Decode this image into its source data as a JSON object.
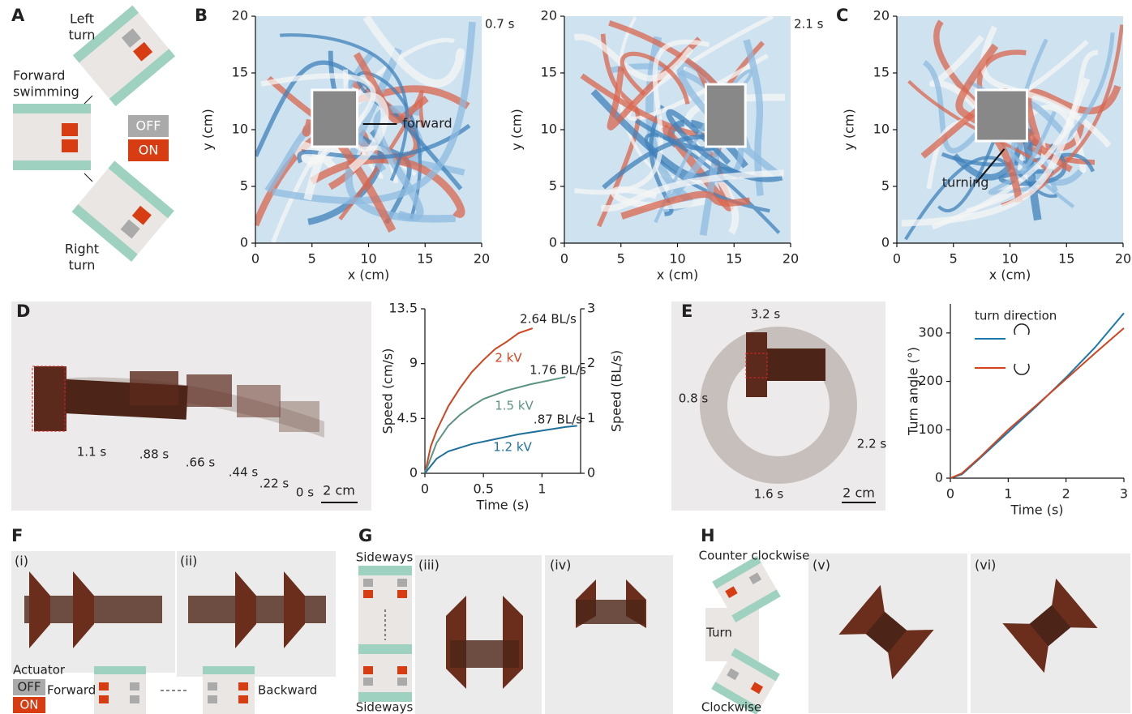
{
  "panels": {
    "A": {
      "letter": "A",
      "left_turn": [
        "Left",
        "turn"
      ],
      "forward_swimming": [
        "Forward",
        "swimming"
      ],
      "right_turn": [
        "Right",
        "turn"
      ],
      "off": "OFF",
      "on": "ON"
    },
    "D": {
      "letter": "D",
      "times": [
        "1.1 s",
        ".88 s",
        ".66 s",
        ".44 s",
        ".22 s",
        "0 s"
      ],
      "scale": "2 cm"
    },
    "E": {
      "letter": "E",
      "times": [
        "3.2 s",
        "0.8 s",
        "2.2 s",
        "1.6 s"
      ],
      "scale": "2 cm"
    },
    "F": {
      "letter": "F",
      "views": [
        "(i)",
        "(ii)"
      ],
      "actuator": "Actuator",
      "off": "OFF",
      "on": "ON",
      "forward": "Forward",
      "backward": "Backward"
    },
    "G": {
      "letter": "G",
      "sideways": [
        "Sideways",
        "Sideways"
      ],
      "views": [
        "(iii)",
        "(iv)"
      ]
    },
    "H": {
      "letter": "H",
      "counter_clockwise": "Counter clockwise",
      "turn": "Turn",
      "clockwise": "Clockwise",
      "views": [
        "(v)",
        "(vi)"
      ]
    }
  },
  "chart_data": [
    {
      "type": "field",
      "letter": "B",
      "time_label": "0.7 s",
      "annotation": "forward",
      "xlabel": "x (cm)",
      "ylabel": "y (cm)",
      "xlim": [
        0,
        20
      ],
      "ylim": [
        0,
        20
      ],
      "xticks": [
        0,
        5,
        10,
        15,
        20
      ],
      "yticks": [
        0,
        5,
        10,
        15,
        20
      ]
    },
    {
      "type": "field",
      "time_label": "2.1 s",
      "xlabel": "x (cm)",
      "ylabel": "y (cm)",
      "xlim": [
        0,
        20
      ],
      "ylim": [
        0,
        20
      ],
      "xticks": [
        0,
        5,
        10,
        15,
        20
      ],
      "yticks": [
        0,
        5,
        10,
        15,
        20
      ]
    },
    {
      "type": "field",
      "letter": "C",
      "annotation": "turning",
      "xlabel": "x (cm)",
      "ylabel": "y (cm)",
      "xlim": [
        0,
        20
      ],
      "ylim": [
        0,
        20
      ],
      "xticks": [
        0,
        5,
        10,
        15,
        20
      ],
      "yticks": [
        0,
        5,
        10,
        15,
        20
      ]
    },
    {
      "type": "line",
      "xlabel": "Time (s)",
      "ylabel": "Speed (cm/s)",
      "y2label": "Speed (BL/s)",
      "xlim": [
        0,
        1.33
      ],
      "xticks": [
        0,
        0.5,
        1
      ],
      "ylim": [
        0,
        13.5
      ],
      "yticks": [
        0,
        4.5,
        9,
        13.5
      ],
      "y2lim": [
        0,
        3
      ],
      "y2ticks": [
        0,
        1,
        2,
        3
      ],
      "series": [
        {
          "name": "2 kV",
          "color": "#d2441f",
          "end_label": "2.64 BL/s",
          "x": [
            0,
            0.05,
            0.1,
            0.2,
            0.3,
            0.4,
            0.5,
            0.6,
            0.7,
            0.8,
            0.92
          ],
          "values": [
            0,
            2.2,
            3.5,
            5.5,
            7,
            8.3,
            9.3,
            10.2,
            10.8,
            11.5,
            11.9
          ]
        },
        {
          "name": "1.5 kV",
          "color": "#5b9384",
          "end_label": "1.76 BL/s",
          "x": [
            0,
            0.1,
            0.2,
            0.3,
            0.4,
            0.5,
            0.7,
            0.9,
            1.2
          ],
          "values": [
            0,
            2.5,
            3.9,
            4.8,
            5.5,
            6.1,
            6.8,
            7.3,
            7.9
          ]
        },
        {
          "name": "1.2 kV",
          "color": "#1f6f9c",
          "end_label": ".87 BL/s",
          "x": [
            0,
            0.1,
            0.2,
            0.4,
            0.6,
            0.8,
            1.0,
            1.2,
            1.3
          ],
          "values": [
            0,
            1.2,
            1.8,
            2.4,
            2.8,
            3.2,
            3.5,
            3.8,
            3.9
          ]
        }
      ]
    },
    {
      "type": "line",
      "xlabel": "Time (s)",
      "ylabel": "Turn angle (°)",
      "legend_title": "turn direction",
      "xlim": [
        0,
        3
      ],
      "xticks": [
        0,
        1,
        2,
        3
      ],
      "ylim": [
        0,
        360
      ],
      "yticks": [
        0,
        100,
        200,
        300
      ],
      "series": [
        {
          "color": "#1a78ad",
          "x": [
            0,
            0.2,
            0.5,
            1,
            1.5,
            2,
            2.5,
            3
          ],
          "values": [
            0,
            8,
            40,
            95,
            150,
            208,
            270,
            341
          ]
        },
        {
          "color": "#d2441f",
          "x": [
            0,
            0.2,
            0.5,
            1,
            1.5,
            2,
            2.5,
            3
          ],
          "values": [
            0,
            10,
            42,
            100,
            152,
            205,
            258,
            310
          ]
        }
      ]
    }
  ]
}
